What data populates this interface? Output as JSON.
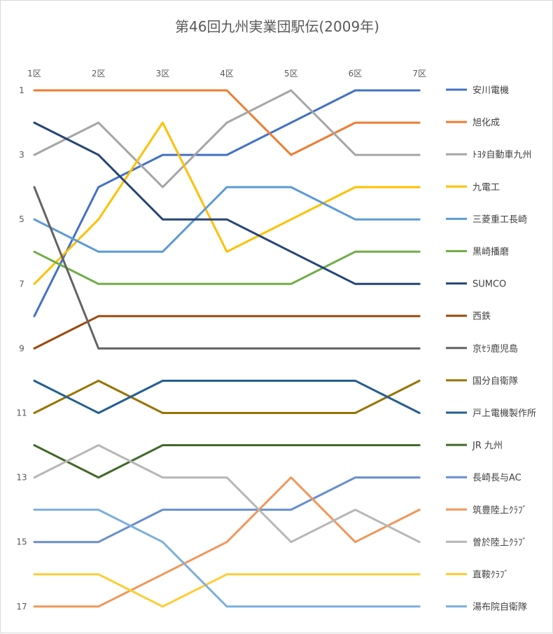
{
  "chart_data": {
    "type": "line",
    "title": "第46回九州実業団駅伝(2009年)",
    "categories": [
      "1区",
      "2区",
      "3区",
      "4区",
      "5区",
      "6区",
      "7区"
    ],
    "y_tick_labels": [
      "1",
      "3",
      "5",
      "7",
      "9",
      "11",
      "13",
      "15",
      "17"
    ],
    "ylim": [
      1,
      17
    ],
    "y_reversed": true,
    "grid": false,
    "legend_position": "right",
    "series": [
      {
        "name": "安川電機",
        "color": "#4472C4",
        "values": [
          8,
          4,
          3,
          3,
          2,
          1,
          1
        ]
      },
      {
        "name": "旭化成",
        "color": "#ED7D31",
        "values": [
          1,
          1,
          1,
          1,
          3,
          2,
          2
        ]
      },
      {
        "name": "ﾄﾖﾀ自動車九州",
        "color": "#A5A5A5",
        "values": [
          3,
          2,
          4,
          2,
          1,
          3,
          3
        ]
      },
      {
        "name": "九電工",
        "color": "#FFC000",
        "values": [
          7,
          5,
          2,
          6,
          5,
          4,
          4
        ]
      },
      {
        "name": "三菱重工長崎",
        "color": "#5B9BD5",
        "values": [
          5,
          6,
          6,
          4,
          4,
          5,
          5
        ]
      },
      {
        "name": "黒崎播磨",
        "color": "#70AD47",
        "values": [
          6,
          7,
          7,
          7,
          7,
          6,
          6
        ]
      },
      {
        "name": "SUMCO",
        "color": "#264478",
        "values": [
          2,
          3,
          5,
          5,
          6,
          7,
          7
        ]
      },
      {
        "name": "西鉄",
        "color": "#9E480E",
        "values": [
          9,
          8,
          8,
          8,
          8,
          8,
          8
        ]
      },
      {
        "name": "京ｾﾗ鹿児島",
        "color": "#636363",
        "values": [
          4,
          9,
          9,
          9,
          9,
          9,
          9
        ]
      },
      {
        "name": "国分自衛隊",
        "color": "#997300",
        "values": [
          11,
          10,
          11,
          11,
          11,
          11,
          10
        ]
      },
      {
        "name": "戸上電機製作所",
        "color": "#255E91",
        "values": [
          10,
          11,
          10,
          10,
          10,
          10,
          11
        ]
      },
      {
        "name": "JR 九州",
        "color": "#43682B",
        "values": [
          12,
          13,
          12,
          12,
          12,
          12,
          12
        ]
      },
      {
        "name": "長崎長与AC",
        "color": "#698ED0",
        "values": [
          15,
          15,
          14,
          14,
          14,
          13,
          13
        ]
      },
      {
        "name": "筑豊陸上ｸﾗﾌﾞ",
        "color": "#F1975A",
        "values": [
          17,
          17,
          16,
          15,
          13,
          15,
          14
        ]
      },
      {
        "name": "曽於陸上ｸﾗﾌﾞ",
        "color": "#B7B7B7",
        "values": [
          13,
          12,
          13,
          13,
          15,
          14,
          15
        ]
      },
      {
        "name": "直鞍ｸﾗﾌﾞ",
        "color": "#FFCD33",
        "values": [
          16,
          16,
          17,
          16,
          16,
          16,
          16
        ]
      },
      {
        "name": "湯布院自衛隊",
        "color": "#7CAFDD",
        "values": [
          14,
          14,
          15,
          17,
          17,
          17,
          17
        ]
      }
    ]
  }
}
